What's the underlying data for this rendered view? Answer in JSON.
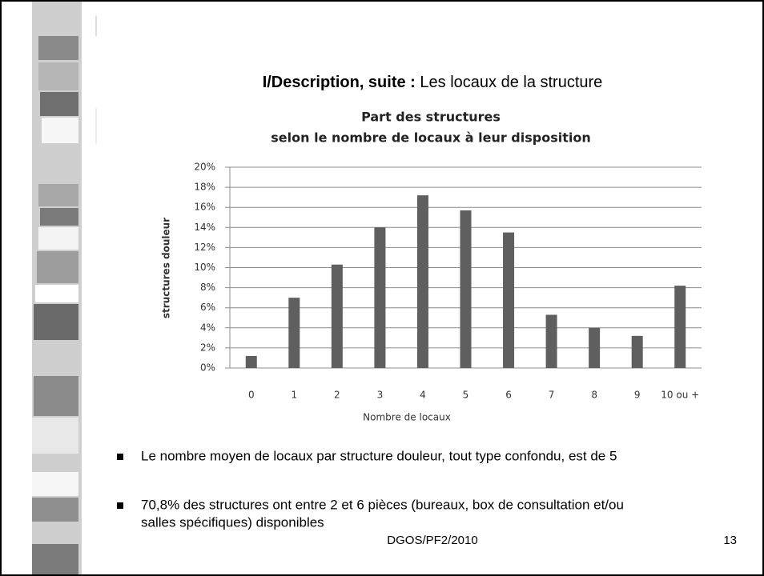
{
  "header": {
    "bold": "I/Description, suite :",
    "rest": "Les locaux de la structure"
  },
  "chart_data": {
    "type": "bar",
    "title": [
      "Part des structures",
      "selon le nombre de locaux à leur disposition"
    ],
    "x_label": "Nombre de locaux",
    "y_label": "structures douleur",
    "categories": [
      "0",
      "1",
      "2",
      "3",
      "4",
      "5",
      "6",
      "7",
      "8",
      "9",
      "10 ou +"
    ],
    "values": [
      1.2,
      7.0,
      10.3,
      14.0,
      17.2,
      15.7,
      13.5,
      5.3,
      4.0,
      3.2,
      8.2
    ],
    "color": "#5f5f5f",
    "ylim": [
      0,
      20
    ],
    "yticks": [
      {
        "value": 0,
        "label": "0%"
      },
      {
        "value": 2,
        "label": "2%"
      },
      {
        "value": 4,
        "label": "4%"
      },
      {
        "value": 6,
        "label": "6%"
      },
      {
        "value": 8,
        "label": "8%"
      },
      {
        "value": 10,
        "label": "10%"
      },
      {
        "value": 12,
        "label": "12%"
      },
      {
        "value": 14,
        "label": "14%"
      },
      {
        "value": 16,
        "label": "16%"
      },
      {
        "value": 18,
        "label": "18%"
      },
      {
        "value": 20,
        "label": "20%"
      }
    ],
    "grid": true
  },
  "bullets": [
    "Le nombre moyen de locaux par structure douleur, tout type confondu, est de 5",
    "70,8% des structures ont entre 2 et 6 pièces (bureaux, box de consultation et/ou",
    "salles spécifiques) disponibles"
  ],
  "footer": {
    "source": "DGOS/PF2/2010",
    "page": "13"
  }
}
